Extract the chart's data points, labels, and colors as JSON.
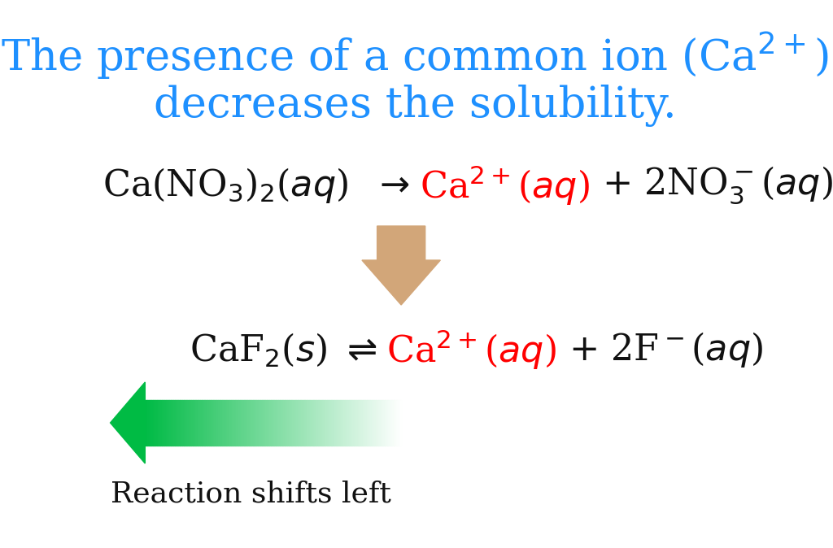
{
  "background_color": "#ffffff",
  "title_color": "#1E90FF",
  "title_fontsize": 38,
  "eq_fontsize": 32,
  "label_fontsize": 26,
  "text_color_black": "#111111",
  "text_color_red": "#FF0000",
  "arrow_color": "#D2A679",
  "green_arrow_color": "#00BB44",
  "reaction_shifts_label": "Reaction shifts left",
  "title_line1": "The presence of a common ion (Ca$^{2+}$)",
  "title_line2": "decreases the solubility."
}
